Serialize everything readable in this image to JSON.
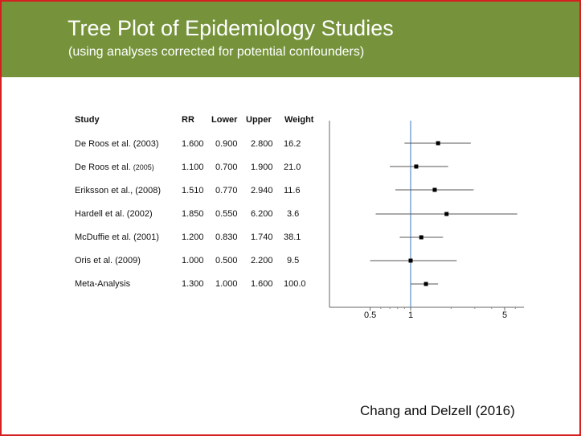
{
  "header": {
    "title": "Tree Plot of Epidemiology Studies",
    "subtitle": "(using analyses corrected for potential confounders)"
  },
  "colors": {
    "header_bg": "#76933c",
    "border": "#d42020",
    "reference_line": "#5b8fc9",
    "marker": "#000000"
  },
  "chart_data": {
    "type": "forest",
    "columns": [
      "Study",
      "RR",
      "Lower",
      "Upper",
      "Weight"
    ],
    "studies": [
      {
        "study": "De Roos et al. (2003)",
        "rr": "1.600",
        "lower": "0.900",
        "upper": "2.800",
        "weight": "16.2"
      },
      {
        "study": "De Roos et al.",
        "study_year": "(2005)",
        "rr": "1.100",
        "lower": "0.700",
        "upper": "1.900",
        "weight": "21.0"
      },
      {
        "study": "Eriksson et al., (2008)",
        "rr": "1.510",
        "lower": "0.770",
        "upper": "2.940",
        "weight": "11.6"
      },
      {
        "study": "Hardell et al. (2002)",
        "rr": "1.850",
        "lower": "0.550",
        "upper": "6.200",
        "weight": "3.6"
      },
      {
        "study": "McDuffie et al. (2001)",
        "rr": "1.200",
        "lower": "0.830",
        "upper": "1.740",
        "weight": "38.1"
      },
      {
        "study": "Oris et al. (2009)",
        "rr": "1.000",
        "lower": "0.500",
        "upper": "2.200",
        "weight": "9.5"
      },
      {
        "study": "Meta-Analysis",
        "rr": "1.300",
        "lower": "1.000",
        "upper": "1.600",
        "weight": "100.0"
      }
    ],
    "x_scale": "log",
    "xlim": [
      0.33,
      8
    ],
    "x_ticks": [
      "0.5",
      "1",
      "5"
    ],
    "x_tick_values": [
      0.5,
      1,
      5
    ],
    "reference_value": 1
  },
  "citation": "Chang and Delzell (2016)"
}
